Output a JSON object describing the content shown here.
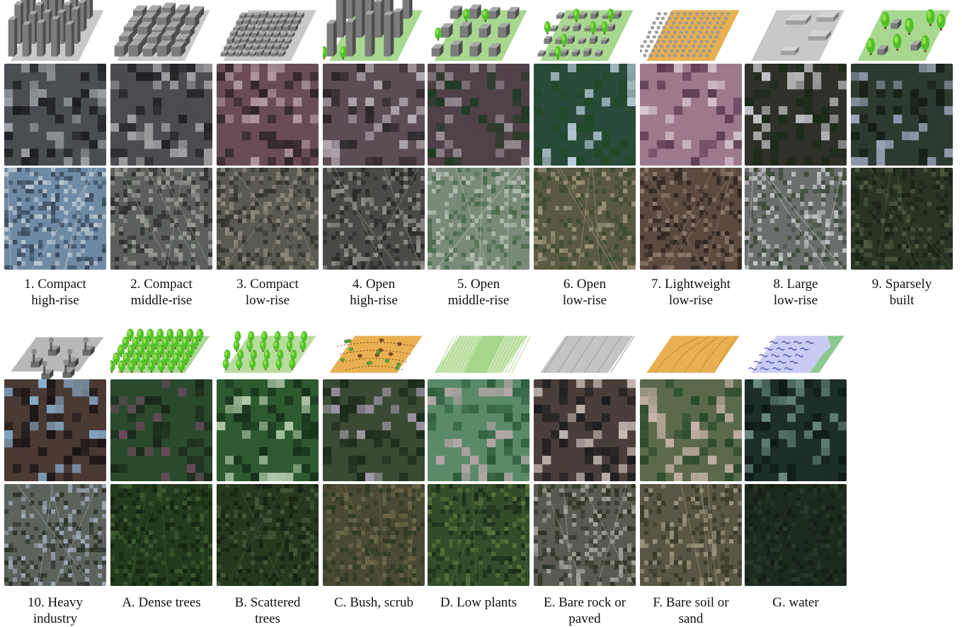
{
  "figure": {
    "rows": [
      {
        "classes": [
          {
            "id": "lcz-1",
            "line1": "1. Compact",
            "line2": "high-rise",
            "icon": "high-rise-buildings-icon",
            "sentinel": {
              "c1": "#4a4d52",
              "c2": "#9aa0a4",
              "c3": "#1c1c20"
            },
            "aerial": {
              "c1": "#6f8aa4",
              "c2": "#b8c6d0",
              "c3": "#3a4a5c"
            }
          },
          {
            "id": "lcz-2",
            "line1": "2. Compact",
            "line2": "middle-rise",
            "icon": "middle-rise-buildings-icon",
            "sentinel": {
              "c1": "#4c4c50",
              "c2": "#a3a3a6",
              "c3": "#222226"
            },
            "aerial": {
              "c1": "#5c5f5c",
              "c2": "#9a9c98",
              "c3": "#2e302e"
            }
          },
          {
            "id": "lcz-3",
            "line1": "3. Compact",
            "line2": "low-rise",
            "icon": "low-rise-buildings-icon",
            "sentinel": {
              "c1": "#6a4c58",
              "c2": "#b29aa4",
              "c3": "#2e2228"
            },
            "aerial": {
              "c1": "#5a5a50",
              "c2": "#8c8a7c",
              "c3": "#34342c"
            }
          },
          {
            "id": "lcz-4",
            "line1": "4. Open",
            "line2": "high-rise",
            "icon": "open-high-rise-icon",
            "sentinel": {
              "c1": "#5c4c54",
              "c2": "#b6aeb4",
              "c3": "#2a2428"
            },
            "aerial": {
              "c1": "#4a4a48",
              "c2": "#8e8e8a",
              "c3": "#2a2a28"
            }
          },
          {
            "id": "lcz-5",
            "line1": "5. Open",
            "line2": "middle-rise",
            "icon": "open-middle-rise-icon",
            "sentinel": {
              "c1": "#504048",
              "c2": "#9a9096",
              "c3": "#1e3a24"
            },
            "aerial": {
              "c1": "#7a8a78",
              "c2": "#b6c0b4",
              "c3": "#4a6a4a"
            }
          },
          {
            "id": "lcz-6",
            "line1": "6. Open",
            "line2": "low-rise",
            "icon": "open-low-rise-icon",
            "sentinel": {
              "c1": "#2a4a3a",
              "c2": "#c0d4e0",
              "c3": "#204a26"
            },
            "aerial": {
              "c1": "#5a5a44",
              "c2": "#9a9478",
              "c3": "#3a4a2c"
            }
          },
          {
            "id": "lcz-7",
            "line1": "7. Lightweight",
            "line2": "low-rise",
            "icon": "lightweight-low-rise-icon",
            "sentinel": {
              "c1": "#9c7a8c",
              "c2": "#d8c6d0",
              "c3": "#5a3a50"
            },
            "aerial": {
              "c1": "#5a4a40",
              "c2": "#8a7a6c",
              "c3": "#2c2420"
            }
          },
          {
            "id": "lcz-8",
            "line1": "8. Large",
            "line2": "low-rise",
            "icon": "large-low-rise-icon",
            "sentinel": {
              "c1": "#30302a",
              "c2": "#c6c6c8",
              "c3": "#1a2a16"
            },
            "aerial": {
              "c1": "#6a6e6c",
              "c2": "#c4c8c8",
              "c3": "#3a4a38"
            }
          },
          {
            "id": "lcz-9",
            "line1": "9. Sparsely",
            "line2": "built",
            "icon": "sparsely-built-icon",
            "sentinel": {
              "c1": "#2c3a30",
              "c2": "#9aa4b8",
              "c3": "#141e16"
            },
            "aerial": {
              "c1": "#2a3424",
              "c2": "#4c5a40",
              "c3": "#1a2216"
            }
          }
        ]
      },
      {
        "classes": [
          {
            "id": "lcz-10",
            "line1": "10. Heavy",
            "line2": "industry",
            "icon": "heavy-industry-icon",
            "sentinel": {
              "c1": "#4a3a34",
              "c2": "#8ab0d0",
              "c3": "#1a1414"
            },
            "aerial": {
              "c1": "#5c625c",
              "c2": "#9aa8b4",
              "c3": "#2a3228"
            }
          },
          {
            "id": "lcz-a",
            "line1": "A. Dense trees",
            "line2": "",
            "icon": "dense-trees-icon",
            "sentinel": {
              "c1": "#2a4a2e",
              "c2": "#6a4a5a",
              "c3": "#1a2a1a"
            },
            "aerial": {
              "c1": "#243a1c",
              "c2": "#3e5a30",
              "c3": "#16240f"
            }
          },
          {
            "id": "lcz-b",
            "line1": "B. Scattered",
            "line2": "trees",
            "icon": "scattered-trees-icon",
            "sentinel": {
              "c1": "#2e5a30",
              "c2": "#b0c8a8",
              "c3": "#16321a"
            },
            "aerial": {
              "c1": "#26381e",
              "c2": "#46583a",
              "c3": "#162212"
            }
          },
          {
            "id": "lcz-c",
            "line1": "C. Bush, scrub",
            "line2": "",
            "icon": "bush-scrub-icon",
            "sentinel": {
              "c1": "#3a4a34",
              "c2": "#a8a0b0",
              "c3": "#1c2a1a"
            },
            "aerial": {
              "c1": "#4a4a34",
              "c2": "#6c6a4a",
              "c3": "#2e3a22"
            }
          },
          {
            "id": "lcz-d",
            "line1": "D. Low plants",
            "line2": "",
            "icon": "low-plants-icon",
            "sentinel": {
              "c1": "#5a8a6a",
              "c2": "#b8a8a8",
              "c3": "#2a5a3a"
            },
            "aerial": {
              "c1": "#344c2a",
              "c2": "#58703e",
              "c3": "#1e2e18"
            }
          },
          {
            "id": "lcz-e",
            "line1": "E. Bare rock or",
            "line2": "paved",
            "icon": "bare-rock-paved-icon",
            "sentinel": {
              "c1": "#4a3e3c",
              "c2": "#c8bcb8",
              "c3": "#1a1a1c"
            },
            "aerial": {
              "c1": "#5a5a50",
              "c2": "#a4a49a",
              "c3": "#2e3424"
            }
          },
          {
            "id": "lcz-f",
            "line1": "F. Bare soil or",
            "line2": "sand",
            "icon": "bare-soil-sand-icon",
            "sentinel": {
              "c1": "#5a6a4a",
              "c2": "#c8b4a8",
              "c3": "#2a4a2a"
            },
            "aerial": {
              "c1": "#5a5644",
              "c2": "#9a947c",
              "c3": "#3a3a2a"
            }
          },
          {
            "id": "lcz-g",
            "line1": "G. water",
            "line2": "",
            "icon": "water-icon",
            "sentinel": {
              "c1": "#1c2e28",
              "c2": "#6a8a80",
              "c3": "#0e1a18"
            },
            "aerial": {
              "c1": "#1c2a1e",
              "c2": "#2a3a2a",
              "c3": "#141e16"
            }
          }
        ]
      }
    ]
  }
}
